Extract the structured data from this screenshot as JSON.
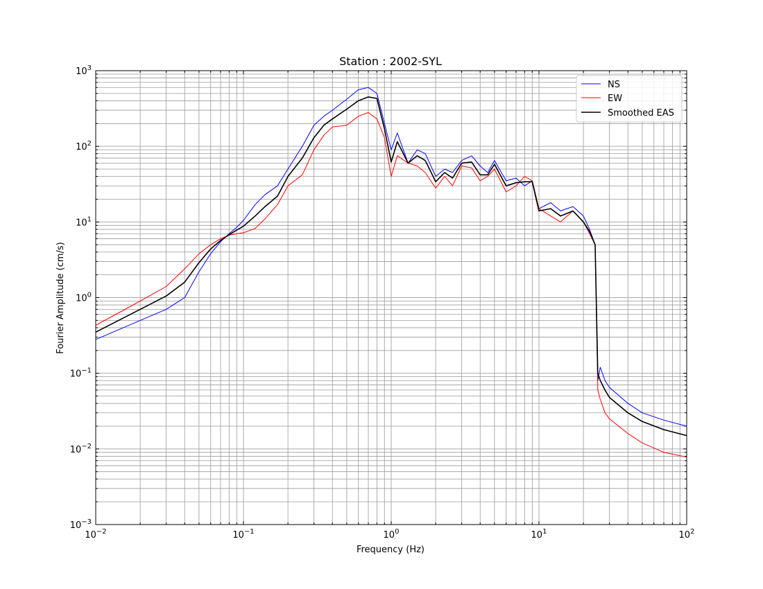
{
  "chart_data": {
    "type": "line",
    "title": "Station : 2002-SYL",
    "xlabel": "Frequency (Hz)",
    "ylabel": "Fourier Amplitude (cm/s)",
    "xscale": "log",
    "yscale": "log",
    "xlim": [
      0.01,
      100
    ],
    "ylim": [
      0.001,
      1000
    ],
    "x_ticks": [
      {
        "base": "10",
        "exp": "−2"
      },
      {
        "base": "10",
        "exp": "−1"
      },
      {
        "base": "10",
        "exp": "0"
      },
      {
        "base": "10",
        "exp": "1"
      },
      {
        "base": "10",
        "exp": "2"
      }
    ],
    "y_ticks": [
      {
        "base": "10",
        "exp": "−3"
      },
      {
        "base": "10",
        "exp": "−2"
      },
      {
        "base": "10",
        "exp": "−1"
      },
      {
        "base": "10",
        "exp": "0"
      },
      {
        "base": "10",
        "exp": "1"
      },
      {
        "base": "10",
        "exp": "2"
      },
      {
        "base": "10",
        "exp": "3"
      }
    ],
    "grid": "both major and minor",
    "legend_position": "top-right",
    "series": [
      {
        "name": "NS",
        "color": "#0000ff",
        "x": [
          0.01,
          0.02,
          0.03,
          0.04,
          0.05,
          0.06,
          0.07,
          0.08,
          0.09,
          0.1,
          0.12,
          0.14,
          0.17,
          0.2,
          0.25,
          0.3,
          0.35,
          0.4,
          0.5,
          0.6,
          0.7,
          0.8,
          0.9,
          1.0,
          1.1,
          1.3,
          1.5,
          1.7,
          2.0,
          2.3,
          2.6,
          3.0,
          3.5,
          4.0,
          4.5,
          5.0,
          6.0,
          7.0,
          8.0,
          9.0,
          10.0,
          12.0,
          14.0,
          17.0,
          20.0,
          22.0,
          24.0,
          25.0,
          26.0,
          28.0,
          30.0,
          40.0,
          50.0,
          70.0,
          100.0
        ],
        "y": [
          0.28,
          0.5,
          0.7,
          1.0,
          2.2,
          3.8,
          5.5,
          7.0,
          8.5,
          10.5,
          17,
          23,
          30,
          50,
          100,
          190,
          250,
          300,
          420,
          560,
          600,
          500,
          200,
          90,
          150,
          60,
          90,
          80,
          40,
          50,
          45,
          65,
          75,
          55,
          45,
          65,
          35,
          38,
          30,
          35,
          15,
          18,
          14,
          16,
          12,
          8,
          5,
          0.08,
          0.12,
          0.08,
          0.065,
          0.04,
          0.03,
          0.024,
          0.02
        ]
      },
      {
        "name": "EW",
        "color": "#ff0000",
        "x": [
          0.01,
          0.02,
          0.03,
          0.04,
          0.05,
          0.06,
          0.07,
          0.08,
          0.09,
          0.1,
          0.12,
          0.14,
          0.17,
          0.2,
          0.25,
          0.3,
          0.35,
          0.4,
          0.5,
          0.6,
          0.7,
          0.8,
          0.9,
          1.0,
          1.1,
          1.3,
          1.5,
          1.7,
          2.0,
          2.3,
          2.6,
          3.0,
          3.5,
          4.0,
          4.5,
          5.0,
          6.0,
          7.0,
          8.0,
          9.0,
          10.0,
          12.0,
          14.0,
          17.0,
          20.0,
          22.0,
          24.0,
          25.0,
          26.0,
          28.0,
          30.0,
          40.0,
          50.0,
          70.0,
          100.0
        ],
        "y": [
          0.43,
          0.9,
          1.4,
          2.4,
          3.8,
          5.0,
          6.0,
          6.7,
          7.0,
          7.2,
          8.2,
          11,
          17,
          30,
          42,
          90,
          140,
          180,
          190,
          250,
          280,
          230,
          130,
          40,
          75,
          60,
          55,
          45,
          28,
          40,
          30,
          55,
          52,
          35,
          40,
          50,
          25,
          30,
          40,
          35,
          15,
          12,
          10,
          14,
          10,
          7,
          5,
          0.06,
          0.045,
          0.03,
          0.025,
          0.016,
          0.012,
          0.009,
          0.0078
        ]
      },
      {
        "name": "Smoothed EAS",
        "color": "#000000",
        "x": [
          0.01,
          0.02,
          0.03,
          0.04,
          0.05,
          0.06,
          0.07,
          0.08,
          0.09,
          0.1,
          0.12,
          0.14,
          0.17,
          0.2,
          0.25,
          0.3,
          0.35,
          0.4,
          0.5,
          0.6,
          0.7,
          0.8,
          0.9,
          1.0,
          1.1,
          1.3,
          1.5,
          1.7,
          2.0,
          2.3,
          2.6,
          3.0,
          3.5,
          4.0,
          4.5,
          5.0,
          6.0,
          7.0,
          8.0,
          9.0,
          10.0,
          12.0,
          14.0,
          17.0,
          20.0,
          22.0,
          24.0,
          25.0,
          26.0,
          28.0,
          30.0,
          40.0,
          50.0,
          70.0,
          100.0
        ],
        "y": [
          0.35,
          0.7,
          1.05,
          1.6,
          2.9,
          4.4,
          5.7,
          6.8,
          7.8,
          8.8,
          12,
          16,
          22,
          40,
          70,
          130,
          190,
          230,
          310,
          400,
          450,
          430,
          170,
          62,
          115,
          60,
          75,
          65,
          34,
          45,
          38,
          60,
          62,
          42,
          42,
          58,
          30,
          33,
          34,
          34,
          14,
          15,
          12,
          14,
          10,
          7.5,
          5,
          0.1,
          0.08,
          0.06,
          0.048,
          0.03,
          0.023,
          0.018,
          0.015
        ]
      }
    ]
  }
}
